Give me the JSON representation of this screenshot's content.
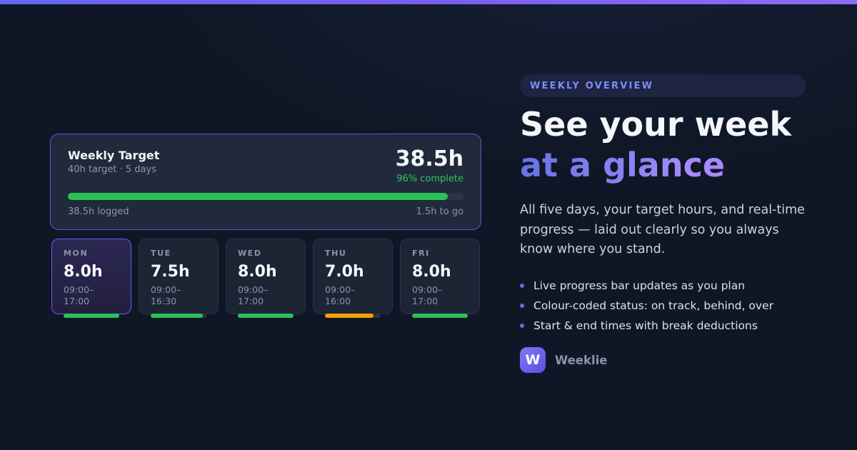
{
  "page": {
    "accent_gradient": [
      "#6366f1",
      "#8b6cf6"
    ],
    "background": "#0f1726"
  },
  "colors": {
    "green": "#2bc158",
    "orange": "#f59e0b",
    "purple_accent": "#6b5ce5",
    "card_border": "#565bd8"
  },
  "weekly_card": {
    "title": "Weekly Target",
    "subtitle": "40h target · 5 days",
    "total_hours": "38.5h",
    "percent_label": "96% complete",
    "progress": {
      "pct": 96,
      "color": "#2bc158"
    },
    "logged_label": "38.5h logged",
    "remaining_label": "1.5h to go"
  },
  "days": [
    {
      "label": "MON",
      "hours": "8.0h",
      "time": "09:00–17:00",
      "bar": {
        "pct": 100,
        "color": "#2bc158"
      },
      "highlighted": true
    },
    {
      "label": "TUE",
      "hours": "7.5h",
      "time": "09:00–16:30",
      "bar": {
        "pct": 94,
        "color": "#2bc158"
      },
      "highlighted": false
    },
    {
      "label": "WED",
      "hours": "8.0h",
      "time": "09:00–17:00",
      "bar": {
        "pct": 100,
        "color": "#2bc158"
      },
      "highlighted": false
    },
    {
      "label": "THU",
      "hours": "7.0h",
      "time": "09:00–16:00",
      "bar": {
        "pct": 87,
        "color": "#f59e0b"
      },
      "highlighted": false
    },
    {
      "label": "FRI",
      "hours": "8.0h",
      "time": "09:00–17:00",
      "bar": {
        "pct": 100,
        "color": "#2bc158"
      },
      "highlighted": false
    }
  ],
  "right": {
    "badge": "WEEKLY OVERVIEW",
    "headline_line1": "See your week",
    "headline_line2": "at a glance",
    "description": "All five days, your target hours, and real-time progress — laid out clearly so you always know where you stand.",
    "bullets": [
      "Live progress bar updates as you plan",
      "Colour-coded status: on track, behind, over",
      "Start & end times with break deductions"
    ],
    "brand": {
      "logo_letter": "W",
      "name": "Weeklie"
    }
  }
}
